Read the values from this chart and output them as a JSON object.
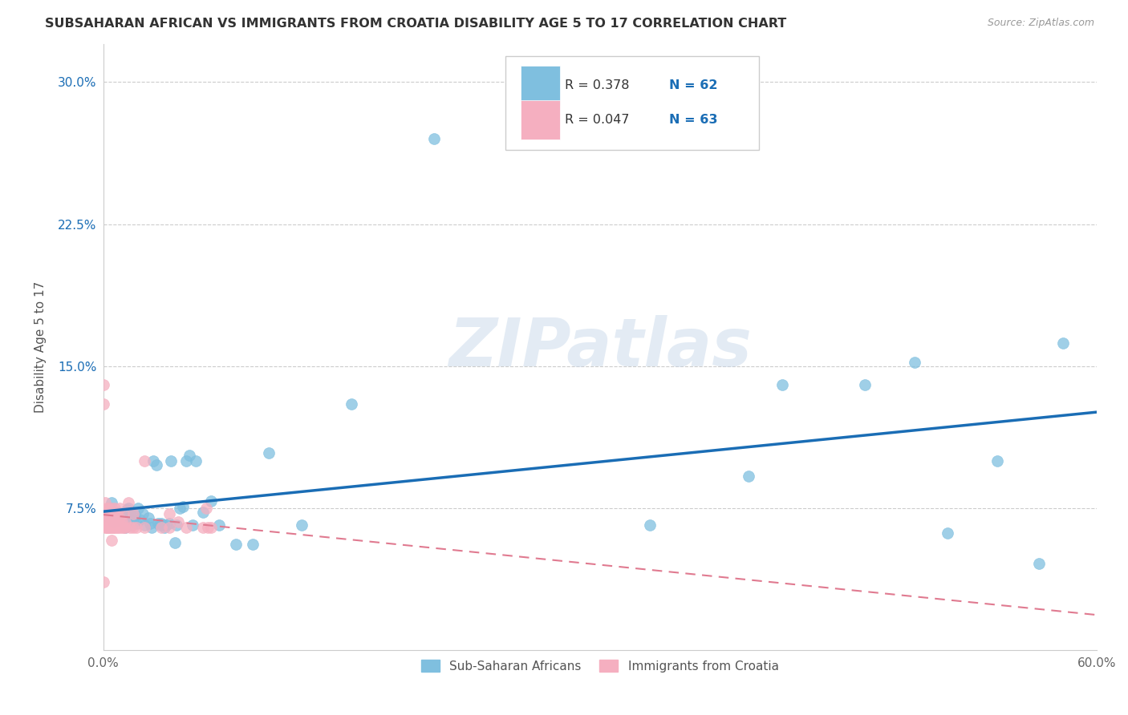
{
  "title": "SUBSAHARAN AFRICAN VS IMMIGRANTS FROM CROATIA DISABILITY AGE 5 TO 17 CORRELATION CHART",
  "source": "Source: ZipAtlas.com",
  "ylabel": "Disability Age 5 to 17",
  "xlim": [
    0.0,
    0.6
  ],
  "ylim": [
    0.0,
    0.32
  ],
  "xticks": [
    0.0,
    0.1,
    0.2,
    0.3,
    0.4,
    0.5,
    0.6
  ],
  "xticklabels": [
    "0.0%",
    "",
    "",
    "",
    "",
    "",
    "60.0%"
  ],
  "yticks": [
    0.075,
    0.15,
    0.225,
    0.3
  ],
  "yticklabels": [
    "7.5%",
    "15.0%",
    "22.5%",
    "30.0%"
  ],
  "legend_r1": "R = 0.378",
  "legend_n1": "N = 62",
  "legend_r2": "R = 0.047",
  "legend_n2": "N = 63",
  "blue_color": "#7fbfdf",
  "pink_color": "#f5afc0",
  "blue_line_color": "#1a6db5",
  "pink_line_color": "#e07a90",
  "watermark": "ZIPatlas",
  "blue_label": "Sub-Saharan Africans",
  "pink_label": "Immigrants from Croatia",
  "blue_scatter_x": [
    0.004,
    0.004,
    0.005,
    0.006,
    0.007,
    0.008,
    0.009,
    0.01,
    0.011,
    0.012,
    0.013,
    0.014,
    0.015,
    0.015,
    0.016,
    0.017,
    0.018,
    0.019,
    0.02,
    0.021,
    0.022,
    0.024,
    0.025,
    0.027,
    0.028,
    0.029,
    0.03,
    0.032,
    0.033,
    0.034,
    0.035,
    0.036,
    0.037,
    0.038,
    0.04,
    0.041,
    0.043,
    0.044,
    0.046,
    0.048,
    0.05,
    0.052,
    0.054,
    0.056,
    0.06,
    0.065,
    0.07,
    0.08,
    0.09,
    0.1,
    0.12,
    0.15,
    0.2,
    0.33,
    0.39,
    0.41,
    0.46,
    0.49,
    0.51,
    0.54,
    0.565,
    0.58
  ],
  "blue_scatter_y": [
    0.07,
    0.075,
    0.078,
    0.068,
    0.072,
    0.07,
    0.073,
    0.071,
    0.068,
    0.072,
    0.065,
    0.074,
    0.075,
    0.071,
    0.073,
    0.066,
    0.069,
    0.071,
    0.067,
    0.075,
    0.069,
    0.072,
    0.066,
    0.07,
    0.067,
    0.065,
    0.1,
    0.098,
    0.067,
    0.066,
    0.067,
    0.066,
    0.065,
    0.066,
    0.067,
    0.1,
    0.057,
    0.066,
    0.075,
    0.076,
    0.1,
    0.103,
    0.066,
    0.1,
    0.073,
    0.079,
    0.066,
    0.056,
    0.056,
    0.104,
    0.066,
    0.13,
    0.27,
    0.066,
    0.092,
    0.14,
    0.14,
    0.152,
    0.062,
    0.1,
    0.046,
    0.162
  ],
  "pink_scatter_x": [
    0.0,
    0.0,
    0.0,
    0.001,
    0.001,
    0.001,
    0.002,
    0.002,
    0.002,
    0.002,
    0.002,
    0.003,
    0.003,
    0.003,
    0.003,
    0.003,
    0.004,
    0.004,
    0.004,
    0.004,
    0.004,
    0.005,
    0.005,
    0.005,
    0.005,
    0.005,
    0.006,
    0.006,
    0.006,
    0.006,
    0.007,
    0.007,
    0.007,
    0.008,
    0.008,
    0.008,
    0.009,
    0.009,
    0.01,
    0.01,
    0.01,
    0.011,
    0.011,
    0.012,
    0.012,
    0.013,
    0.013,
    0.015,
    0.016,
    0.018,
    0.018,
    0.02,
    0.025,
    0.025,
    0.035,
    0.04,
    0.04,
    0.045,
    0.05,
    0.06,
    0.062,
    0.063,
    0.065
  ],
  "pink_scatter_y": [
    0.13,
    0.14,
    0.036,
    0.065,
    0.072,
    0.078,
    0.065,
    0.068,
    0.072,
    0.075,
    0.065,
    0.065,
    0.068,
    0.072,
    0.075,
    0.065,
    0.065,
    0.068,
    0.072,
    0.07,
    0.065,
    0.075,
    0.068,
    0.07,
    0.065,
    0.058,
    0.065,
    0.068,
    0.072,
    0.065,
    0.065,
    0.07,
    0.075,
    0.065,
    0.068,
    0.072,
    0.065,
    0.068,
    0.065,
    0.07,
    0.075,
    0.065,
    0.068,
    0.065,
    0.072,
    0.065,
    0.068,
    0.078,
    0.065,
    0.065,
    0.072,
    0.065,
    0.1,
    0.065,
    0.065,
    0.072,
    0.065,
    0.068,
    0.065,
    0.065,
    0.075,
    0.065,
    0.065
  ],
  "blue_trendline_x": [
    0.0,
    0.6
  ],
  "blue_trendline_y": [
    0.063,
    0.148
  ],
  "pink_trendline_x": [
    0.0,
    0.065
  ],
  "pink_trendline_y": [
    0.068,
    0.073
  ]
}
